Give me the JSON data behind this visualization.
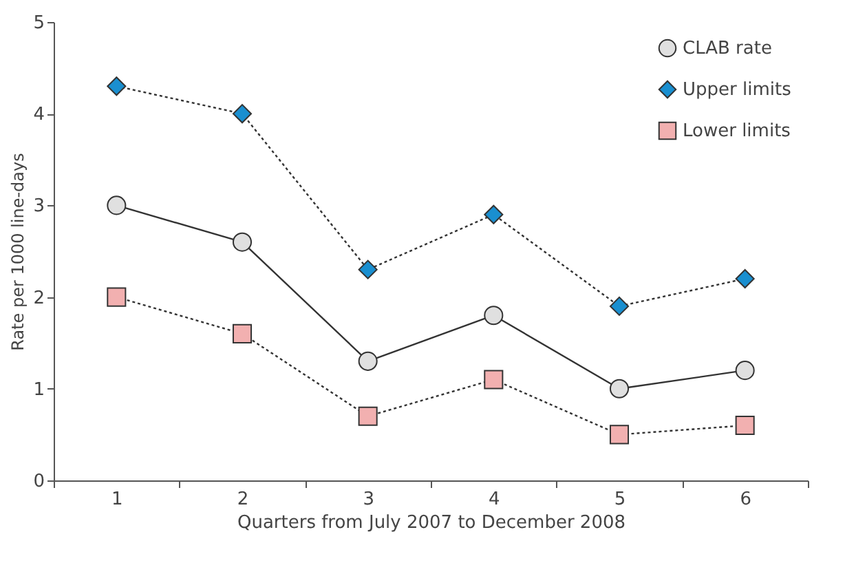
{
  "chart_data": {
    "type": "line",
    "xlabel": "Quarters from July 2007 to December 2008",
    "ylabel": "Rate per 1000 line-days",
    "categories": [
      "1",
      "2",
      "3",
      "4",
      "5",
      "6"
    ],
    "series": [
      {
        "name": "CLAB rate",
        "color": "#e0e0e0",
        "marker": "circle",
        "line_style": "solid",
        "values": [
          3.0,
          2.6,
          1.3,
          1.8,
          1.0,
          1.2
        ]
      },
      {
        "name": "Upper limits",
        "color": "#1a8fd0",
        "marker": "diamond",
        "line_style": "dotted",
        "values": [
          4.3,
          4.0,
          2.3,
          2.9,
          1.9,
          2.2
        ]
      },
      {
        "name": "Lower limits",
        "color": "#f2b0b0",
        "marker": "square",
        "line_style": "dotted",
        "values": [
          2.0,
          1.6,
          0.7,
          1.1,
          0.5,
          0.6
        ]
      }
    ],
    "ylim": [
      0,
      5
    ],
    "yticks": [
      0,
      1,
      2,
      3,
      4,
      5
    ],
    "grid": false,
    "legend": "top right"
  }
}
